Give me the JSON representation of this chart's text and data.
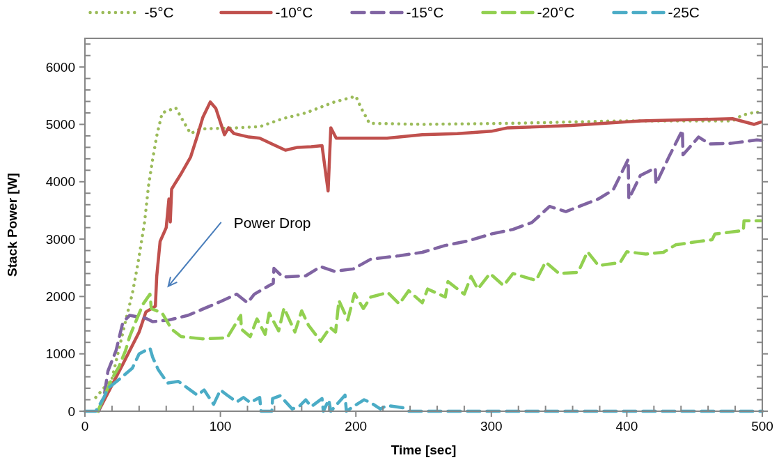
{
  "chart_data": {
    "type": "line",
    "xlabel": "Time [sec]",
    "ylabel": "Stack Power [W]",
    "xlim": [
      0,
      500
    ],
    "ylim": [
      0,
      6500
    ],
    "xticks": [
      0,
      {
        "value": 20,
        "label": null
      },
      {
        "value": 40,
        "label": null
      },
      {
        "value": 60,
        "label": null
      },
      {
        "value": 80,
        "label": null
      },
      100,
      {
        "value": 120,
        "label": null
      },
      {
        "value": 140,
        "label": null
      },
      {
        "value": 160,
        "label": null
      },
      {
        "value": 180,
        "label": null
      },
      200,
      {
        "value": 220,
        "label": null
      },
      {
        "value": 240,
        "label": null
      },
      {
        "value": 260,
        "label": null
      },
      {
        "value": 280,
        "label": null
      },
      300,
      {
        "value": 320,
        "label": null
      },
      {
        "value": 340,
        "label": null
      },
      {
        "value": 360,
        "label": null
      },
      {
        "value": 380,
        "label": null
      },
      400,
      {
        "value": 420,
        "label": null
      },
      {
        "value": 440,
        "label": null
      },
      {
        "value": 460,
        "label": null
      },
      {
        "value": 480,
        "label": null
      },
      500
    ],
    "yticks": [
      0,
      {
        "value": 200,
        "label": null
      },
      {
        "value": 400,
        "label": null
      },
      {
        "value": 600,
        "label": null
      },
      {
        "value": 800,
        "label": null
      },
      1000,
      {
        "value": 1200,
        "label": null
      },
      {
        "value": 1400,
        "label": null
      },
      {
        "value": 1600,
        "label": null
      },
      {
        "value": 1800,
        "label": null
      },
      2000,
      {
        "value": 2200,
        "label": null
      },
      {
        "value": 2400,
        "label": null
      },
      {
        "value": 2600,
        "label": null
      },
      {
        "value": 2800,
        "label": null
      },
      3000,
      {
        "value": 3200,
        "label": null
      },
      {
        "value": 3400,
        "label": null
      },
      {
        "value": 3600,
        "label": null
      },
      {
        "value": 3800,
        "label": null
      },
      4000,
      {
        "value": 4200,
        "label": null
      },
      {
        "value": 4400,
        "label": null
      },
      {
        "value": 4600,
        "label": null
      },
      {
        "value": 4800,
        "label": null
      },
      5000,
      {
        "value": 5200,
        "label": null
      },
      {
        "value": 5400,
        "label": null
      },
      {
        "value": 5600,
        "label": null
      },
      {
        "value": 5800,
        "label": null
      },
      6000,
      {
        "value": 6200,
        "label": null
      },
      {
        "value": 6400,
        "label": null
      }
    ],
    "grid": false,
    "legend": "top",
    "marker": "none",
    "annotations": [
      "Power Drop"
    ],
    "series": [
      {
        "name": "-5°C",
        "color": "#9bbb59",
        "line_style": "dotted",
        "x": [
          8,
          20,
          31,
          35,
          39,
          44,
          47,
          50,
          53,
          57,
          67,
          72,
          78,
          85,
          112,
          129,
          146,
          163,
          184,
          200,
          204,
          210,
          249,
          318,
          393,
          478,
          485,
          496,
          500
        ],
        "values": [
          240,
          570,
          1670,
          2050,
          2560,
          3290,
          3940,
          4390,
          4800,
          5200,
          5290,
          5080,
          4840,
          4920,
          4940,
          4960,
          5100,
          5200,
          5390,
          5490,
          5280,
          5020,
          5000,
          5020,
          5060,
          5060,
          5160,
          5220,
          5150
        ]
      },
      {
        "name": "-10°C",
        "color": "#c0504d",
        "line_style": "solid",
        "x": [
          10,
          28,
          40,
          45,
          52,
          53,
          55.5,
          60,
          62,
          63,
          64,
          66,
          71,
          78,
          83,
          87,
          92.5,
          96.6,
          103,
          106,
          110,
          121,
          129,
          138,
          148,
          157,
          167,
          175,
          179.5,
          181.5,
          185.5,
          198,
          223,
          249,
          275,
          300,
          312,
          359,
          410,
          478,
          494,
          499
        ],
        "values": [
          0,
          820,
          1380,
          1730,
          1830,
          2350,
          2960,
          3200,
          3700,
          3300,
          3870,
          3950,
          4140,
          4430,
          4800,
          5120,
          5390,
          5280,
          4820,
          4940,
          4840,
          4780,
          4760,
          4660,
          4550,
          4600,
          4610,
          4630,
          3840,
          4940,
          4760,
          4760,
          4760,
          4820,
          4840,
          4880,
          4940,
          4980,
          5060,
          5100,
          5000,
          5040
        ]
      },
      {
        "name": "-15°C",
        "color": "#8064a2",
        "line_style": "dashed",
        "x": [
          10,
          14,
          17,
          23,
          28,
          33,
          45,
          50,
          62,
          76,
          88,
          100,
          112,
          120,
          125,
          139,
          139.5,
          146,
          163,
          174,
          184,
          198,
          211,
          232,
          249,
          266,
          283,
          300,
          316,
          330,
          343,
          355,
          379,
          390,
          401,
          401.5,
          410,
          421,
          421.5,
          431,
          441,
          441.5,
          453,
          461,
          477,
          496,
          500
        ],
        "values": [
          0,
          240,
          700,
          1060,
          1550,
          1670,
          1620,
          1560,
          1590,
          1670,
          1790,
          1910,
          2040,
          1890,
          2040,
          2230,
          2490,
          2340,
          2360,
          2520,
          2440,
          2480,
          2650,
          2710,
          2770,
          2890,
          2970,
          3090,
          3170,
          3290,
          3570,
          3480,
          3700,
          3860,
          4390,
          3700,
          4110,
          4240,
          3960,
          4430,
          4900,
          4470,
          4780,
          4660,
          4670,
          4730,
          4720
        ]
      },
      {
        "name": "-20°C",
        "color": "#92d050",
        "line_style": "dashed",
        "x": [
          9.5,
          20,
          25,
          30,
          33,
          38,
          43,
          48,
          49,
          57,
          64,
          71,
          88,
          105,
          115,
          115.5,
          122,
          127,
          133,
          136,
          143,
          147,
          155,
          160,
          165,
          174,
          181,
          185,
          187.5,
          194,
          199,
          205.5,
          211,
          223.5,
          232,
          239,
          249,
          253,
          266,
          268,
          280,
          285,
          290,
          299,
          309,
          316,
          333,
          340,
          350,
          364,
          371,
          379,
          395,
          400,
          414,
          427,
          436,
          450,
          463,
          465,
          486,
          486.5,
          499
        ],
        "values": [
          0,
          570,
          770,
          1060,
          1300,
          1590,
          1870,
          2040,
          1790,
          1710,
          1430,
          1300,
          1260,
          1280,
          1670,
          1430,
          1300,
          1610,
          1340,
          1710,
          1400,
          1800,
          1380,
          1750,
          1500,
          1220,
          1460,
          1380,
          1930,
          1590,
          2050,
          1790,
          1990,
          2070,
          1870,
          2100,
          1890,
          2130,
          1990,
          2260,
          2040,
          2350,
          2130,
          2400,
          2190,
          2400,
          2280,
          2600,
          2400,
          2420,
          2780,
          2540,
          2590,
          2780,
          2740,
          2770,
          2900,
          2950,
          2990,
          3090,
          3150,
          3320,
          3320
        ]
      },
      {
        "name": "-25C",
        "color": "#4bacc6",
        "line_style": "dashed",
        "x": [
          0,
          8,
          14,
          17,
          25,
          35,
          40,
          48,
          50,
          54,
          61,
          69,
          76,
          83,
          88,
          95,
          100,
          105,
          112,
          117,
          122,
          129,
          130,
          138,
          138.5,
          144,
          153,
          158,
          163,
          167,
          175,
          176,
          180,
          181.5,
          192,
          193,
          198,
          206,
          211,
          218,
          223,
          235,
          239,
          300,
          400,
          500
        ],
        "values": [
          0,
          0,
          240,
          400,
          550,
          750,
          1000,
          1100,
          940,
          730,
          490,
          520,
          400,
          280,
          370,
          120,
          370,
          280,
          160,
          240,
          150,
          240,
          0,
          0,
          220,
          270,
          40,
          80,
          200,
          80,
          220,
          0,
          200,
          0,
          280,
          0,
          80,
          200,
          150,
          40,
          100,
          60,
          0,
          0,
          0,
          0
        ]
      }
    ]
  }
}
